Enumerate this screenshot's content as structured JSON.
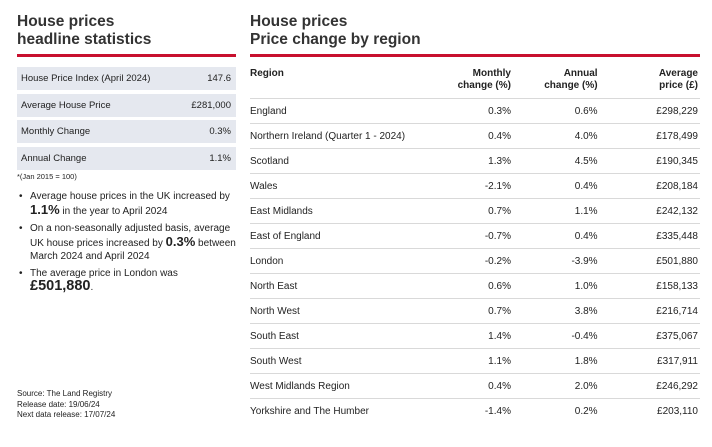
{
  "left": {
    "heading_line1": "House prices",
    "heading_line2": "headline statistics",
    "stats": [
      {
        "label": "House Price Index (April 2024)",
        "value": "147.6"
      },
      {
        "label": "Average House Price",
        "value": "£281,000"
      },
      {
        "label": "Monthly Change",
        "value": "0.3%"
      },
      {
        "label": "Annual Change",
        "value": "1.1%"
      }
    ],
    "footnote": "*(Jan 2015 = 100)",
    "bullets": {
      "b1_pre": "Average house prices in the UK increased by ",
      "b1_val": "1.1%",
      "b1_post": " in the year to April 2024",
      "b2_pre": "On a non-seasonally adjusted basis, average UK house prices increased by ",
      "b2_val": "0.3%",
      "b2_post": " between March 2024 and April 2024",
      "b3_pre": "The average price in London was ",
      "b3_val": "£501,880",
      "b3_post": "."
    },
    "source": {
      "line1": "Source: The Land Registry",
      "line2": "Release date: 19/06/24",
      "line3": "Next data release: 17/07/24"
    }
  },
  "right": {
    "heading_line1": "House prices",
    "heading_line2": "Price change by region",
    "columns": {
      "region": "Region",
      "monthly_l1": "Monthly",
      "monthly_l2": "change (%)",
      "annual_l1": "Annual",
      "annual_l2": "change (%)",
      "avg_l1": "Average",
      "avg_l2": "price (£)"
    },
    "rows": [
      {
        "region": "England",
        "monthly": "0.3%",
        "annual": "0.6%",
        "price": "£298,229"
      },
      {
        "region": "Northern Ireland (Quarter 1 - 2024)",
        "monthly": "0.4%",
        "annual": "4.0%",
        "price": "£178,499"
      },
      {
        "region": "Scotland",
        "monthly": "1.3%",
        "annual": "4.5%",
        "price": "£190,345"
      },
      {
        "region": "Wales",
        "monthly": "-2.1%",
        "annual": "0.4%",
        "price": "£208,184"
      },
      {
        "region": "East Midlands",
        "monthly": "0.7%",
        "annual": "1.1%",
        "price": "£242,132"
      },
      {
        "region": "East of England",
        "monthly": "-0.7%",
        "annual": "0.4%",
        "price": "£335,448"
      },
      {
        "region": "London",
        "monthly": "-0.2%",
        "annual": "-3.9%",
        "price": "£501,880"
      },
      {
        "region": "North East",
        "monthly": "0.6%",
        "annual": "1.0%",
        "price": "£158,133"
      },
      {
        "region": "North West",
        "monthly": "0.7%",
        "annual": "3.8%",
        "price": "£216,714"
      },
      {
        "region": "South East",
        "monthly": "1.4%",
        "annual": "-0.4%",
        "price": "£375,067"
      },
      {
        "region": "South West",
        "monthly": "1.1%",
        "annual": "1.8%",
        "price": "£317,911"
      },
      {
        "region": "West Midlands Region",
        "monthly": "0.4%",
        "annual": "2.0%",
        "price": "£246,292"
      },
      {
        "region": "Yorkshire and The Humber",
        "monthly": "-1.4%",
        "annual": "0.2%",
        "price": "£203,110"
      }
    ]
  },
  "colors": {
    "accent": "#c8102e",
    "shaded_row": "#e5e8ef",
    "row_rule": "#d9d9d9"
  }
}
